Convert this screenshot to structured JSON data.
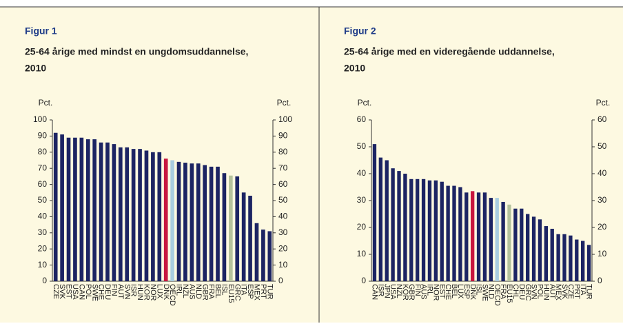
{
  "chart_data": [
    {
      "type": "bar",
      "title": "Figur 1",
      "subtitle": [
        "25-64 årige med mindst en ungdomsuddannelse,",
        "2010"
      ],
      "y_label": "Pct.",
      "categories": [
        "CZE",
        "SVK",
        "EST",
        "USA",
        "CAN",
        "POL",
        "SWE",
        "CHE",
        "DEU",
        "FIN",
        "AUT",
        "SVN",
        "ISR",
        "HUN",
        "KOR",
        "NOR",
        "LUX",
        "DNK",
        "OECD",
        "IRL",
        "NZL",
        "AUS",
        "NLD",
        "GBR",
        "FRA",
        "BEL",
        "ISL",
        "EU15",
        "GRC",
        "ITA",
        "ESP",
        "MEX",
        "PRT",
        "TUR"
      ],
      "values": [
        92,
        91,
        89,
        89,
        89,
        88,
        88,
        86,
        86,
        85,
        83,
        83,
        82,
        82,
        81,
        80,
        80,
        76,
        75,
        74,
        73.5,
        73,
        73,
        72,
        71,
        71,
        67,
        65.5,
        65,
        55,
        53,
        36,
        32,
        31
      ],
      "colors": [
        "#1c2463",
        "#1c2463",
        "#1c2463",
        "#1c2463",
        "#1c2463",
        "#1c2463",
        "#1c2463",
        "#1c2463",
        "#1c2463",
        "#1c2463",
        "#1c2463",
        "#1c2463",
        "#1c2463",
        "#1c2463",
        "#1c2463",
        "#1c2463",
        "#1c2463",
        "#c8173f",
        "#a9cde0",
        "#1c2463",
        "#1c2463",
        "#1c2463",
        "#1c2463",
        "#1c2463",
        "#1c2463",
        "#1c2463",
        "#1c2463",
        "#b5c29c",
        "#1c2463",
        "#1c2463",
        "#1c2463",
        "#1c2463",
        "#1c2463",
        "#1c2463"
      ],
      "ylim": [
        0,
        100
      ],
      "yticks": [
        0,
        10,
        20,
        30,
        40,
        50,
        60,
        70,
        80,
        90,
        100
      ]
    },
    {
      "type": "bar",
      "title": "Figur 2",
      "subtitle": [
        "25-64 årige med en videregående uddannelse,",
        "2010"
      ],
      "y_label": "Pct.",
      "categories": [
        "CAN",
        "ISR",
        "JPN",
        "USA",
        "NZL",
        "KOR",
        "GBR",
        "FIN",
        "AUS",
        "IRL",
        "NOR",
        "EST",
        "CHE",
        "BEL",
        "LUX",
        "ESP",
        "DNK",
        "ISL",
        "SWE",
        "NLD",
        "OECD",
        "FRA",
        "EU15",
        "CHL",
        "DEU",
        "GRC",
        "SVN",
        "POL",
        "HUN",
        "AUT",
        "MEX",
        "SVK",
        "CZE",
        "PRT",
        "ITA",
        "TUR"
      ],
      "values": [
        51,
        46,
        45,
        42,
        41,
        40,
        38,
        38,
        38,
        37.5,
        37.5,
        37,
        35.5,
        35.5,
        35,
        33,
        33.5,
        33,
        33,
        31,
        31,
        29.5,
        28.5,
        27,
        27,
        25,
        24,
        23,
        20.5,
        19.5,
        17.5,
        17.5,
        17,
        15.5,
        15,
        13.5
      ],
      "colors": [
        "#1c2463",
        "#1c2463",
        "#1c2463",
        "#1c2463",
        "#1c2463",
        "#1c2463",
        "#1c2463",
        "#1c2463",
        "#1c2463",
        "#1c2463",
        "#1c2463",
        "#1c2463",
        "#1c2463",
        "#1c2463",
        "#1c2463",
        "#1c2463",
        "#c8173f",
        "#1c2463",
        "#1c2463",
        "#1c2463",
        "#a9cde0",
        "#1c2463",
        "#b5c29c",
        "#1c2463",
        "#1c2463",
        "#1c2463",
        "#1c2463",
        "#1c2463",
        "#1c2463",
        "#1c2463",
        "#1c2463",
        "#1c2463",
        "#1c2463",
        "#1c2463",
        "#1c2463",
        "#1c2463"
      ],
      "ylim": [
        0,
        60
      ],
      "yticks": [
        0,
        10,
        20,
        30,
        40,
        50,
        60
      ]
    }
  ]
}
